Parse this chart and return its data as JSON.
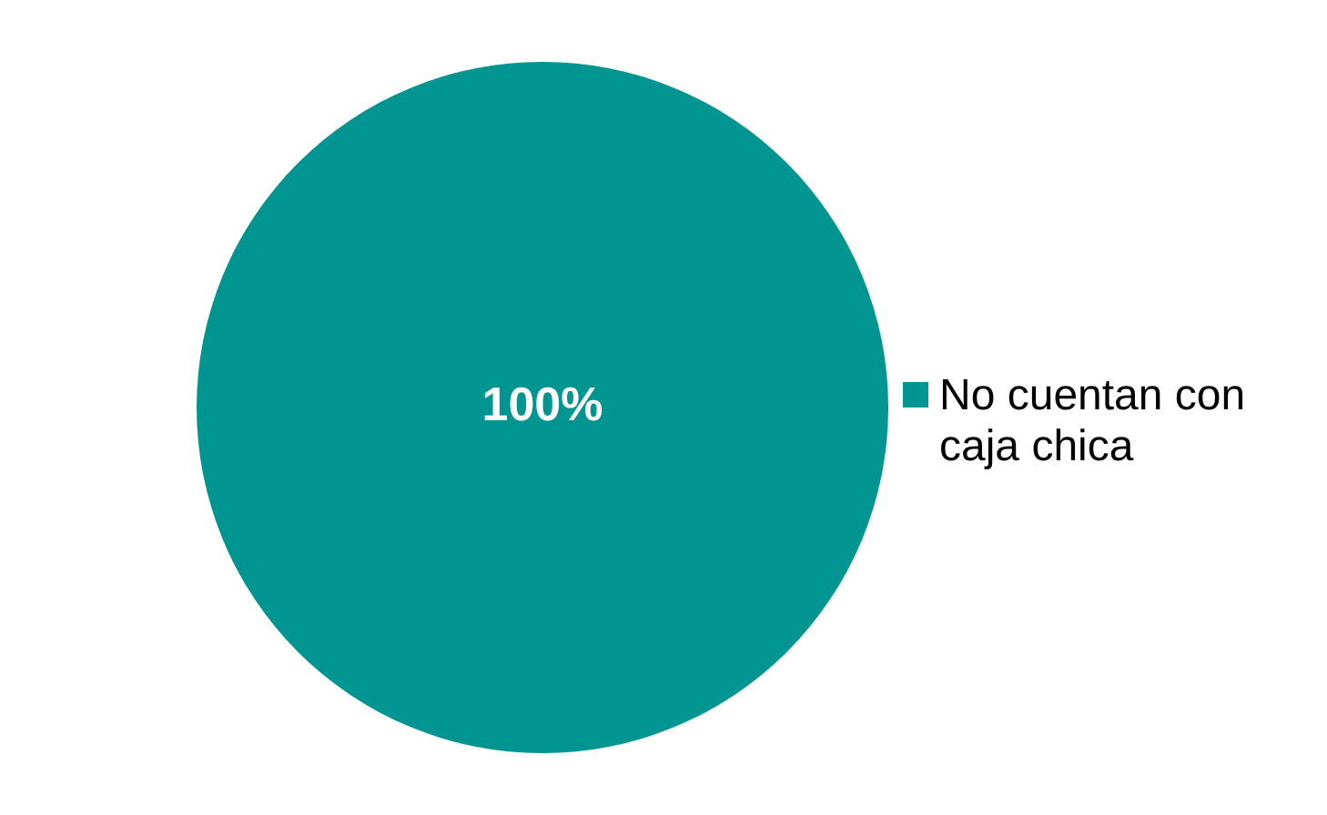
{
  "chart_data": {
    "type": "pie",
    "categories": [
      "No cuentan con caja chica"
    ],
    "values": [
      100
    ],
    "value_labels": [
      "100%"
    ],
    "colors": [
      "#009590"
    ],
    "legend": "right"
  }
}
